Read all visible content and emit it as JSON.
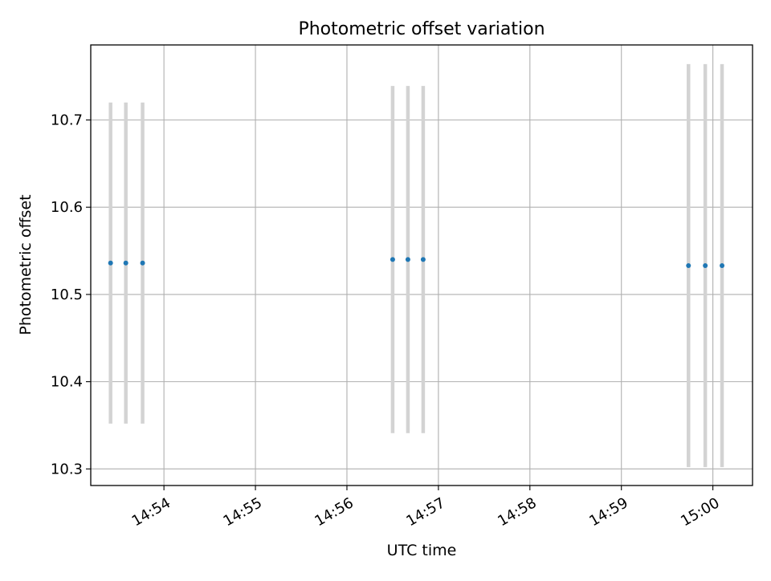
{
  "chart_data": {
    "type": "scatter",
    "title": "Photometric offset variation",
    "xlabel": "UTC time",
    "ylabel": "Photometric offset",
    "x_tick_labels": [
      "14:54",
      "14:55",
      "14:56",
      "14:57",
      "14:58",
      "14:59",
      "15:00"
    ],
    "x_ticks": [
      "14:54:00",
      "14:55:00",
      "14:56:00",
      "14:57:00",
      "14:58:00",
      "14:59:00",
      "15:00:00"
    ],
    "y_ticks": [
      10.3,
      10.4,
      10.5,
      10.6,
      10.7
    ],
    "y_tick_labels": [
      "10.3",
      "10.4",
      "10.5",
      "10.6",
      "10.7"
    ],
    "xlim": [
      "14:53:12",
      "15:00:26"
    ],
    "ylim": [
      10.281,
      10.786
    ],
    "grid": true,
    "point_color": "#1f77b4",
    "errorbar_color": "#d3d3d3",
    "series": [
      {
        "x": [
          "14:53:25",
          "14:53:35",
          "14:53:46",
          "14:56:30",
          "14:56:40",
          "14:56:50",
          "14:59:44",
          "14:59:55",
          "15:00:06"
        ],
        "y": [
          10.536,
          10.536,
          10.536,
          10.54,
          10.54,
          10.54,
          10.533,
          10.533,
          10.533
        ],
        "error": [
          0.184,
          0.184,
          0.184,
          0.199,
          0.199,
          0.199,
          0.231,
          0.231,
          0.231
        ]
      }
    ]
  }
}
